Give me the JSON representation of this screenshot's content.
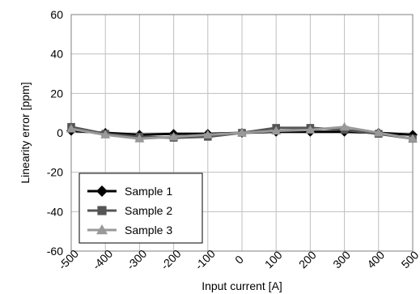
{
  "chart_data": {
    "type": "line",
    "x": [
      -500,
      -400,
      -300,
      -200,
      -100,
      0,
      100,
      200,
      300,
      400,
      500
    ],
    "x_tick_labels": [
      "-500",
      "-400",
      "-300",
      "-200",
      "-100",
      "0",
      "100",
      "200",
      "300",
      "400",
      "500"
    ],
    "y_ticks": [
      60,
      40,
      20,
      0,
      -20,
      -40,
      -60
    ],
    "y_tick_labels": [
      "60",
      "40",
      "20",
      "0",
      "-20",
      "-40",
      "-60"
    ],
    "xlabel": "Input current [A]",
    "ylabel": "Linearity error [ppm]",
    "xlim": [
      -500,
      500
    ],
    "ylim": [
      -60,
      60
    ],
    "grid": true,
    "legend_position": "bottom-left",
    "series": [
      {
        "name": "Sample 1",
        "marker": "diamond",
        "color": "#000000",
        "values": [
          1,
          0,
          -1,
          -0.5,
          -0.5,
          0,
          0.5,
          0.5,
          0.5,
          0,
          -1
        ]
      },
      {
        "name": "Sample 2",
        "marker": "square",
        "color": "#555555",
        "values": [
          3,
          -0.5,
          -2,
          -2.5,
          -2,
          0,
          2.5,
          2.5,
          1.5,
          -0.5,
          -3
        ]
      },
      {
        "name": "Sample 3",
        "marker": "triangle",
        "color": "#999999",
        "values": [
          2,
          -1,
          -3,
          -2,
          -1,
          0,
          1,
          1.5,
          3,
          0,
          -3
        ]
      }
    ]
  }
}
